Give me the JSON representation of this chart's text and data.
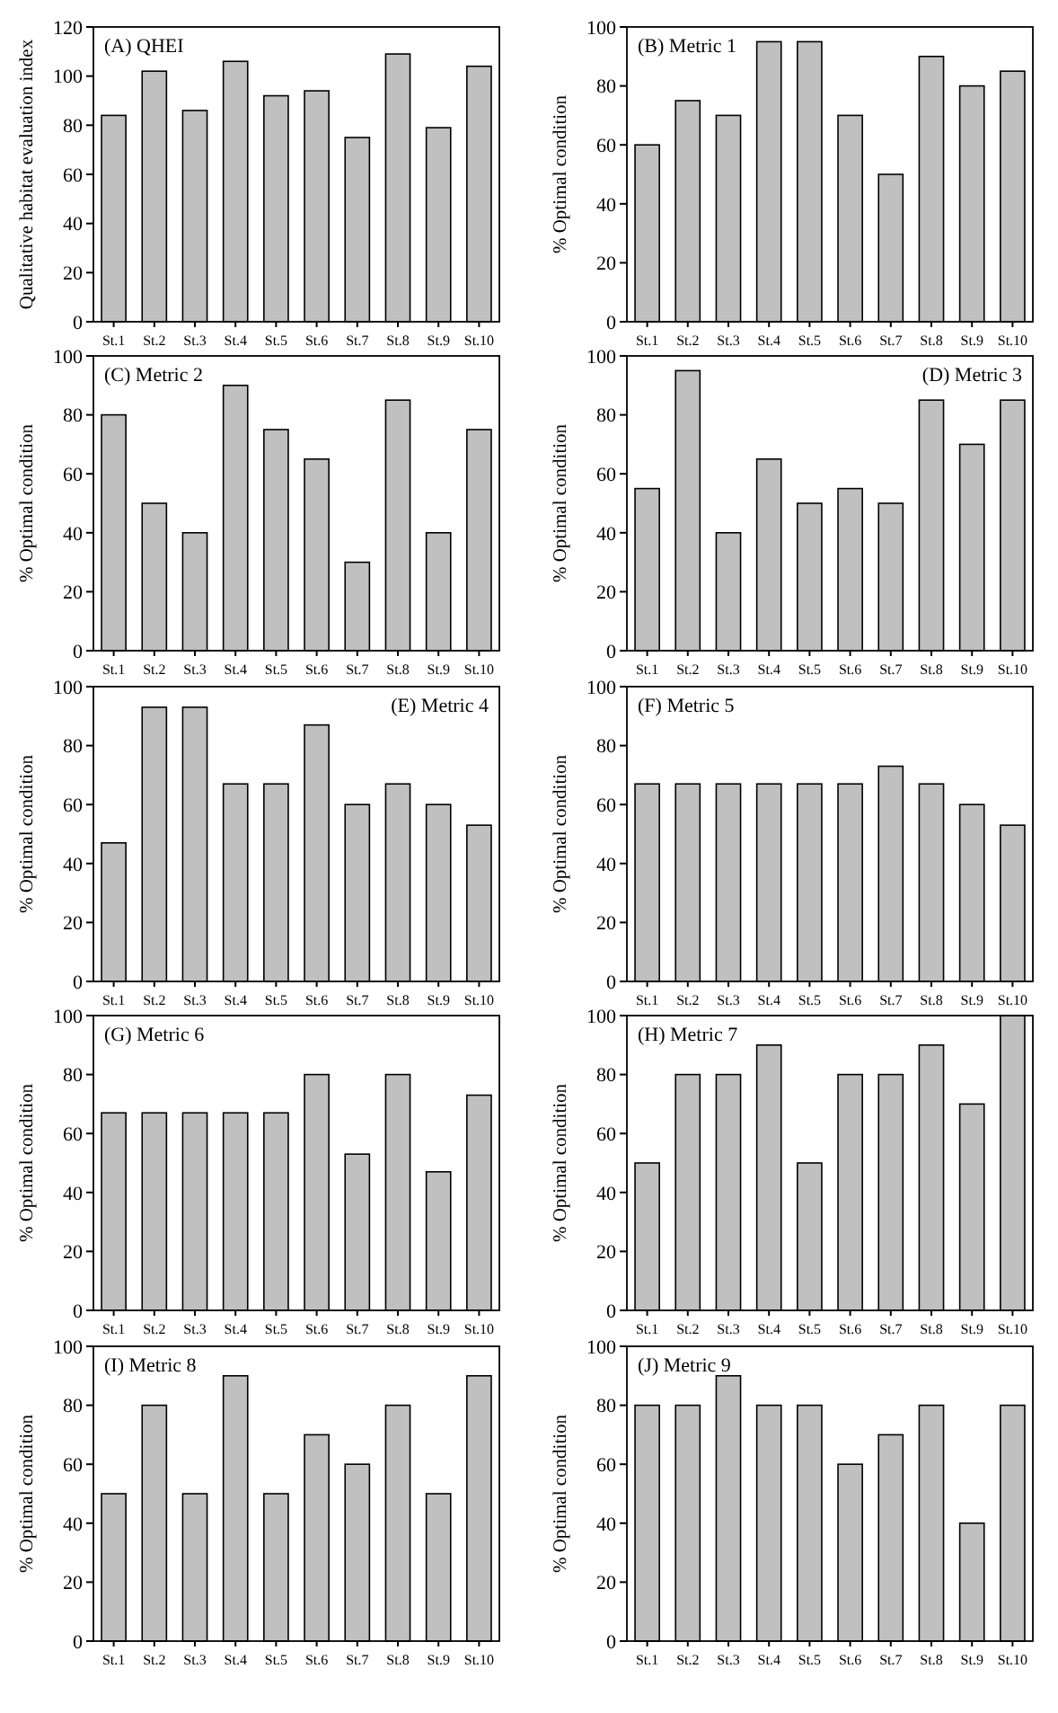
{
  "chart_data": [
    {
      "type": "bar",
      "title": "(A) QHEI",
      "ylabel": "Qualitative habitat evaluation index",
      "categories": [
        "St.1",
        "St.2",
        "St.3",
        "St.4",
        "St.5",
        "St.6",
        "St.7",
        "St.8",
        "St.9",
        "St.10"
      ],
      "values": [
        84,
        102,
        86,
        106,
        92,
        94,
        75,
        109,
        79,
        104
      ],
      "color": "#c0c0c0",
      "ylim": [
        0,
        120
      ],
      "yticks": [
        0,
        20,
        40,
        60,
        80,
        100,
        120
      ],
      "grid": false
    },
    {
      "type": "bar",
      "title": "(B) Metric 1",
      "ylabel": "% Optimal condition",
      "categories": [
        "St.1",
        "St.2",
        "St.3",
        "St.4",
        "St.5",
        "St.6",
        "St.7",
        "St.8",
        "St.9",
        "St.10"
      ],
      "values": [
        60,
        75,
        70,
        95,
        95,
        70,
        50,
        90,
        80,
        85
      ],
      "color": "#c0c0c0",
      "ylim": [
        0,
        100
      ],
      "yticks": [
        0,
        20,
        40,
        60,
        80,
        100
      ],
      "grid": false
    },
    {
      "type": "bar",
      "title": "(C) Metric 2",
      "ylabel": "% Optimal condition",
      "categories": [
        "St.1",
        "St.2",
        "St.3",
        "St.4",
        "St.5",
        "St.6",
        "St.7",
        "St.8",
        "St.9",
        "St.10"
      ],
      "values": [
        80,
        50,
        40,
        90,
        75,
        65,
        30,
        85,
        40,
        75
      ],
      "color": "#c0c0c0",
      "ylim": [
        0,
        100
      ],
      "yticks": [
        0,
        20,
        40,
        60,
        80,
        100
      ],
      "grid": false
    },
    {
      "type": "bar",
      "title": "(D) Metric 3",
      "ylabel": "% Optimal condition",
      "categories": [
        "St.1",
        "St.2",
        "St.3",
        "St.4",
        "St.5",
        "St.6",
        "St.7",
        "St.8",
        "St.9",
        "St.10"
      ],
      "values": [
        55,
        95,
        40,
        65,
        50,
        55,
        50,
        85,
        70,
        85
      ],
      "color": "#c0c0c0",
      "ylim": [
        0,
        100
      ],
      "yticks": [
        0,
        20,
        40,
        60,
        80,
        100
      ],
      "grid": false
    },
    {
      "type": "bar",
      "title": "(E) Metric 4",
      "ylabel": "% Optimal condition",
      "categories": [
        "St.1",
        "St.2",
        "St.3",
        "St.4",
        "St.5",
        "St.6",
        "St.7",
        "St.8",
        "St.9",
        "St.10"
      ],
      "values": [
        47,
        93,
        93,
        67,
        67,
        87,
        60,
        67,
        60,
        53
      ],
      "color": "#c0c0c0",
      "ylim": [
        0,
        100
      ],
      "yticks": [
        0,
        20,
        40,
        60,
        80,
        100
      ],
      "grid": false
    },
    {
      "type": "bar",
      "title": "(F) Metric 5",
      "ylabel": "% Optimal condition",
      "categories": [
        "St.1",
        "St.2",
        "St.3",
        "St.4",
        "St.5",
        "St.6",
        "St.7",
        "St.8",
        "St.9",
        "St.10"
      ],
      "values": [
        67,
        67,
        67,
        67,
        67,
        67,
        73,
        67,
        60,
        53
      ],
      "color": "#c0c0c0",
      "ylim": [
        0,
        100
      ],
      "yticks": [
        0,
        20,
        40,
        60,
        80,
        100
      ],
      "grid": false
    },
    {
      "type": "bar",
      "title": "(G) Metric 6",
      "ylabel": "% Optimal condition",
      "categories": [
        "St.1",
        "St.2",
        "St.3",
        "St.4",
        "St.5",
        "St.6",
        "St.7",
        "St.8",
        "St.9",
        "St.10"
      ],
      "values": [
        67,
        67,
        67,
        67,
        67,
        80,
        53,
        80,
        47,
        73
      ],
      "color": "#c0c0c0",
      "ylim": [
        0,
        100
      ],
      "yticks": [
        0,
        20,
        40,
        60,
        80,
        100
      ],
      "grid": false
    },
    {
      "type": "bar",
      "title": "(H) Metric 7",
      "ylabel": "% Optimal condition",
      "categories": [
        "St.1",
        "St.2",
        "St.3",
        "St.4",
        "St.5",
        "St.6",
        "St.7",
        "St.8",
        "St.9",
        "St.10"
      ],
      "values": [
        50,
        80,
        80,
        90,
        50,
        80,
        80,
        90,
        70,
        100
      ],
      "color": "#c0c0c0",
      "ylim": [
        0,
        100
      ],
      "yticks": [
        0,
        20,
        40,
        60,
        80,
        100
      ],
      "grid": false
    },
    {
      "type": "bar",
      "title": "(I) Metric 8",
      "ylabel": "% Optimal condition",
      "categories": [
        "St.1",
        "St.2",
        "St.3",
        "St.4",
        "St.5",
        "St.6",
        "St.7",
        "St.8",
        "St.9",
        "St.10"
      ],
      "values": [
        50,
        80,
        50,
        90,
        50,
        70,
        60,
        80,
        50,
        90
      ],
      "color": "#c0c0c0",
      "ylim": [
        0,
        100
      ],
      "yticks": [
        0,
        20,
        40,
        60,
        80,
        100
      ],
      "grid": false
    },
    {
      "type": "bar",
      "title": "(J) Metric 9",
      "ylabel": "% Optimal condition",
      "categories": [
        "St.1",
        "St.2",
        "St.3",
        "St.4",
        "St.5",
        "St.6",
        "St.7",
        "St.8",
        "St.9",
        "St.10"
      ],
      "values": [
        80,
        80,
        90,
        80,
        80,
        60,
        70,
        80,
        40,
        80
      ],
      "color": "#c0c0c0",
      "ylim": [
        0,
        100
      ],
      "yticks": [
        0,
        20,
        40,
        60,
        80,
        100
      ],
      "grid": false
    }
  ]
}
